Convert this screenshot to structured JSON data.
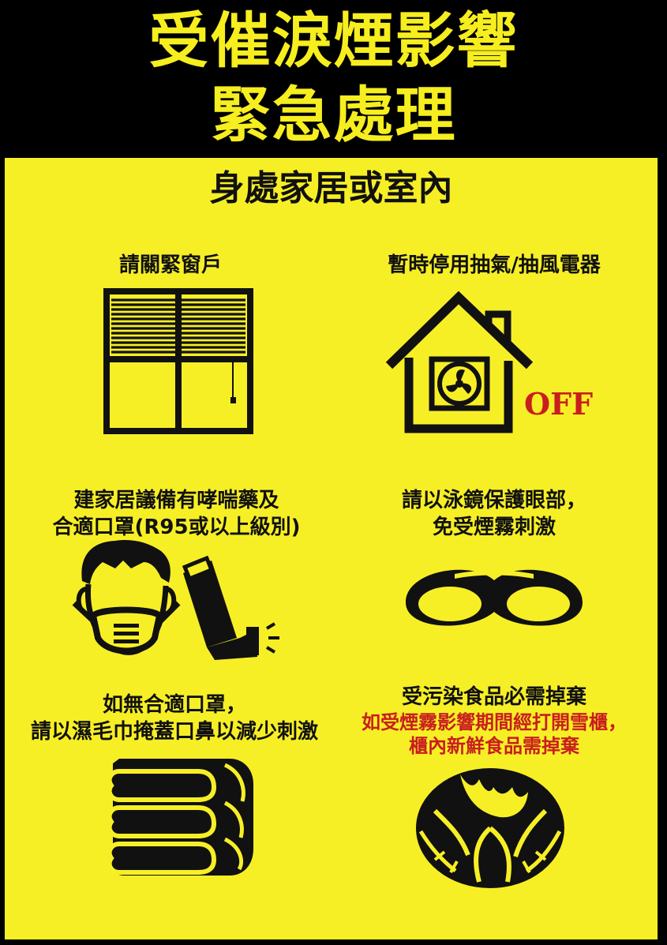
{
  "header": {
    "title_line1": "受催淚煙影響",
    "title_line2": "緊急處理"
  },
  "section": {
    "title": "身處家居或室內"
  },
  "items": [
    {
      "lines": [
        "請關緊窗戶"
      ],
      "icon": "closed-window-icon"
    },
    {
      "lines": [
        "暫時停用抽氣/抽風電器"
      ],
      "icon": "house-fan-off-icon",
      "badge": "OFF"
    },
    {
      "lines": [
        "建家居議備有哮喘藥及",
        "合適口罩(R95或以上級別)"
      ],
      "icon": "mask-inhaler-icon"
    },
    {
      "lines": [
        "請以泳鏡保護眼部，",
        "免受煙霧刺激"
      ],
      "icon": "swim-goggles-icon"
    },
    {
      "lines": [
        "如無合適口罩，",
        "請以濕毛巾掩蓋口鼻以減少刺激"
      ],
      "icon": "towel-stack-icon"
    },
    {
      "lines": [
        "受污染食品必需掉棄"
      ],
      "red_lines": [
        "如受煙霧影響期間經打開雪櫃，",
        "櫃內新鮮食品需掉棄"
      ],
      "icon": "cabbage-icon"
    }
  ],
  "colors": {
    "yellow": "#f7ef26",
    "title_yellow": "#f6ee1f",
    "black": "#000000",
    "red": "#c81e1e"
  }
}
